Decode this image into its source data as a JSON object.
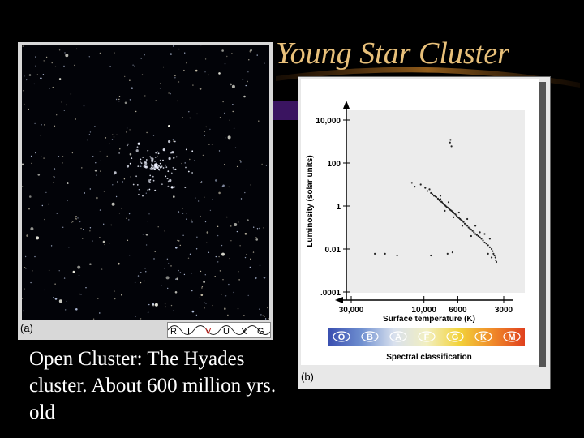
{
  "slide": {
    "title": "Young Star Cluster",
    "caption": "Open Cluster: The Hyades cluster. About 600 million yrs. old",
    "accent_title_color": "#e8c07a"
  },
  "photo_panel": {
    "label": "(a)",
    "bands": [
      "R",
      "I",
      "V",
      "U",
      "X",
      "G"
    ]
  },
  "chart_data": {
    "type": "scatter",
    "xlabel": "Surface temperature (K)",
    "ylabel": "Luminosity (solar units)",
    "x_ticks": [
      "30,000",
      "10,000",
      "6000",
      "3000"
    ],
    "y_ticks": [
      "10,000",
      "100",
      "1",
      "0.01",
      ".0001"
    ],
    "x_scale": "log-reversed",
    "y_scale": "log",
    "xlim": [
      30000,
      3000
    ],
    "ylim": [
      0.0001,
      10000
    ],
    "spectral_classes": [
      "O",
      "B",
      "A",
      "F",
      "G",
      "K",
      "M"
    ],
    "spectral_colors": [
      "#3a4fb0",
      "#6f8fd0",
      "#d8e0ee",
      "#f2efc0",
      "#f2d23a",
      "#f08c2a",
      "#e0401e"
    ],
    "spectral_label": "Spectral classification",
    "panel_label": "(b)",
    "series": [
      {
        "points": [
          [
            6700,
            1200
          ],
          [
            6600,
            600
          ],
          [
            6750,
            900
          ],
          [
            12000,
            12
          ],
          [
            11500,
            8
          ],
          [
            10500,
            10
          ],
          [
            9800,
            7
          ],
          [
            9500,
            5
          ],
          [
            9200,
            6
          ],
          [
            9000,
            4
          ],
          [
            8800,
            3.5
          ],
          [
            8600,
            3
          ],
          [
            8400,
            2.8
          ],
          [
            8300,
            2.6
          ],
          [
            8100,
            2.2
          ],
          [
            8000,
            2
          ],
          [
            7900,
            1.8
          ],
          [
            7800,
            2.1
          ],
          [
            7700,
            1.6
          ],
          [
            7600,
            1.5
          ],
          [
            7500,
            1.3
          ],
          [
            7400,
            1.2
          ],
          [
            7300,
            1.1
          ],
          [
            7200,
            1
          ],
          [
            7100,
            0.9
          ],
          [
            7000,
            0.85
          ],
          [
            6900,
            0.8
          ],
          [
            6800,
            0.7
          ],
          [
            6700,
            0.65
          ],
          [
            6600,
            0.6
          ],
          [
            6500,
            0.55
          ],
          [
            6400,
            0.5
          ],
          [
            6300,
            0.45
          ],
          [
            6200,
            0.4
          ],
          [
            6100,
            0.35
          ],
          [
            6000,
            0.3
          ],
          [
            5900,
            0.28
          ],
          [
            5800,
            0.25
          ],
          [
            5700,
            0.22
          ],
          [
            5600,
            0.2
          ],
          [
            5500,
            0.18
          ],
          [
            5400,
            0.15
          ],
          [
            5300,
            0.13
          ],
          [
            5200,
            0.12
          ],
          [
            5100,
            0.1
          ],
          [
            5000,
            0.09
          ],
          [
            4900,
            0.08
          ],
          [
            4800,
            0.07
          ],
          [
            4700,
            0.06
          ],
          [
            4600,
            0.05
          ],
          [
            4500,
            0.045
          ],
          [
            4400,
            0.04
          ],
          [
            4300,
            0.035
          ],
          [
            4200,
            0.03
          ],
          [
            4100,
            0.025
          ],
          [
            4000,
            0.02
          ],
          [
            3900,
            0.018
          ],
          [
            3800,
            0.015
          ],
          [
            3700,
            0.012
          ],
          [
            3600,
            0.01
          ],
          [
            3550,
            0.008
          ],
          [
            3500,
            0.006
          ],
          [
            3450,
            0.005
          ],
          [
            3400,
            0.004
          ],
          [
            3380,
            0.003
          ],
          [
            3350,
            0.0025
          ],
          [
            7800,
            3
          ],
          [
            7300,
            0.6
          ],
          [
            6900,
            1.5
          ],
          [
            6400,
            0.3
          ],
          [
            5900,
            0.5
          ],
          [
            5600,
            0.12
          ],
          [
            5200,
            0.25
          ],
          [
            4900,
            0.04
          ],
          [
            4600,
            0.12
          ],
          [
            4300,
            0.06
          ],
          [
            4000,
            0.05
          ],
          [
            3800,
            0.006
          ],
          [
            3700,
            0.03
          ],
          [
            3600,
            0.004
          ],
          [
            21000,
            0.006
          ],
          [
            18000,
            0.006
          ],
          [
            15000,
            0.005
          ],
          [
            9000,
            0.005
          ],
          [
            7000,
            0.006
          ],
          [
            6500,
            0.007
          ]
        ]
      }
    ]
  }
}
